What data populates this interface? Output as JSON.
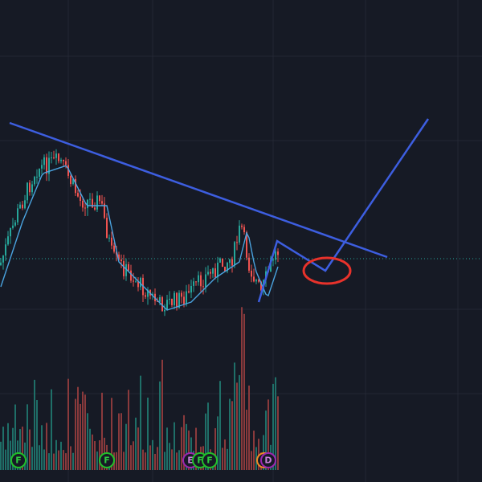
{
  "markers": [
    {
      "label": "F"
    },
    {
      "label": "F"
    },
    {
      "label": "E"
    },
    {
      "label": "F"
    },
    {
      "label": "F"
    },
    {
      "label": "D"
    }
  ]
}
